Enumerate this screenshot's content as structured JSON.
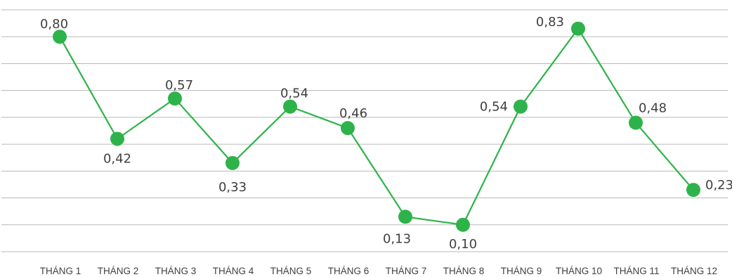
{
  "chart_data": {
    "type": "line",
    "categories": [
      "THÁNG 1",
      "THÁNG 2",
      "THÁNG 3",
      "THÁNG 4",
      "THÁNG 5",
      "THÁNG 6",
      "THÁNG 7",
      "THÁNG 8",
      "THÁNG 9",
      "THÁNG 10",
      "THÁNG 11",
      "THÁNG 12"
    ],
    "values": [
      0.8,
      0.42,
      0.57,
      0.33,
      0.54,
      0.46,
      0.13,
      0.1,
      0.54,
      0.83,
      0.48,
      0.23
    ],
    "value_labels": [
      "0,80",
      "0,42",
      "0,57",
      "0,33",
      "0,54",
      "0,46",
      "0,13",
      "0,10",
      "0,54",
      "0,83",
      "0,48",
      "0,23"
    ],
    "title": "",
    "xlabel": "",
    "ylabel": "",
    "ylim": [
      0,
      0.9
    ],
    "grid": true,
    "legend": "none",
    "colors": {
      "series": "#2db34a",
      "grid": "#b9b9b9",
      "text": "#404040"
    }
  }
}
